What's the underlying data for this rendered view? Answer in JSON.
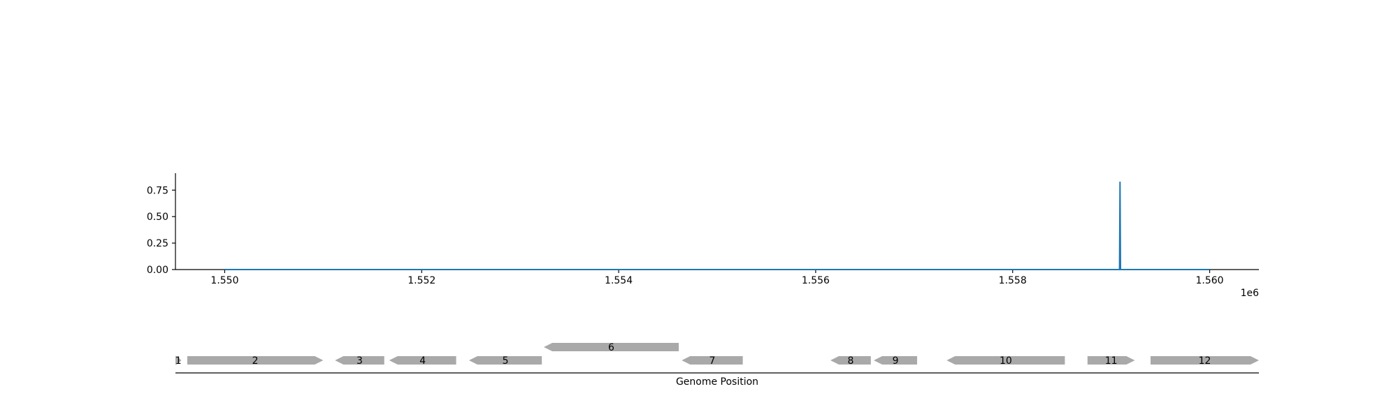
{
  "chart_data": [
    {
      "type": "line",
      "title": "",
      "xlabel": "",
      "ylabel": "",
      "xlim": [
        1549500,
        1560500
      ],
      "ylim": [
        0,
        0.91
      ],
      "x_offset_label": "1e6",
      "x_ticks": [
        1550000,
        1552000,
        1554000,
        1556000,
        1558000,
        1560000
      ],
      "x_tick_labels": [
        "1.550",
        "1.552",
        "1.554",
        "1.556",
        "1.558",
        "1.560"
      ],
      "y_ticks": [
        0,
        0.25,
        0.5,
        0.75
      ],
      "y_tick_labels": [
        "0.00",
        "0.25",
        "0.50",
        "0.75"
      ],
      "grid": false,
      "color": "#1f77b4",
      "series": [
        {
          "x": [
            1550000,
            1559085,
            1559090,
            1559095,
            1560000
          ],
          "y": [
            0,
            0,
            0.83,
            0,
            0
          ]
        }
      ]
    },
    {
      "type": "gene-track",
      "xlabel": "Genome Position",
      "color": "#a9a9a9",
      "genes": [
        {
          "label": "1",
          "start": 1549500,
          "end": 1549560,
          "strand": 1,
          "row": 0
        },
        {
          "label": "2",
          "start": 1549620,
          "end": 1551000,
          "strand": 1,
          "row": 0
        },
        {
          "label": "3",
          "start": 1551120,
          "end": 1551620,
          "strand": -1,
          "row": 0
        },
        {
          "label": "4",
          "start": 1551670,
          "end": 1552350,
          "strand": -1,
          "row": 0
        },
        {
          "label": "5",
          "start": 1552480,
          "end": 1553220,
          "strand": -1,
          "row": 0
        },
        {
          "label": "6",
          "start": 1553240,
          "end": 1554610,
          "strand": -1,
          "row": 1
        },
        {
          "label": "7",
          "start": 1554640,
          "end": 1555260,
          "strand": -1,
          "row": 0
        },
        {
          "label": "8",
          "start": 1556150,
          "end": 1556560,
          "strand": -1,
          "row": 0
        },
        {
          "label": "9",
          "start": 1556590,
          "end": 1557030,
          "strand": -1,
          "row": 0
        },
        {
          "label": "10",
          "start": 1557330,
          "end": 1558530,
          "strand": -1,
          "row": 0
        },
        {
          "label": "11",
          "start": 1558760,
          "end": 1559240,
          "strand": 1,
          "row": 0
        },
        {
          "label": "12",
          "start": 1559400,
          "end": 1560500,
          "strand": 1,
          "row": 0
        }
      ]
    }
  ]
}
